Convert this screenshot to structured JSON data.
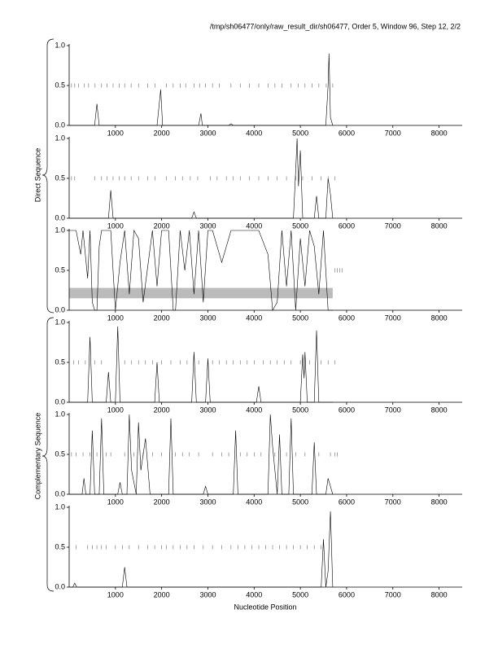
{
  "header": "/tmp/sh06477/only/raw_result_dir/sh06477, Order 5, Window 96, Step 12, 2/2",
  "x_label": "Nucleotide Position",
  "group_labels": [
    "Direct Sequence",
    "Complementary Sequence"
  ],
  "chart_data": [
    {
      "type": "line",
      "color": "#000000",
      "xlim": [
        0,
        8500
      ],
      "ylim": [
        0,
        1
      ],
      "xticks": [
        1000,
        2000,
        3000,
        4000,
        5000,
        6000,
        7000,
        8000
      ],
      "yticks": [
        {
          "value": 0,
          "label": "0.0"
        },
        {
          "value": 0.5,
          "label": "0.5"
        },
        {
          "value": 1,
          "label": "1.0"
        }
      ],
      "x": [
        0,
        550,
        600,
        650,
        1900,
        1980,
        2020,
        2800,
        2850,
        2880,
        3450,
        3500,
        3550,
        5550,
        5600,
        5620,
        5650,
        5700
      ],
      "values": [
        0,
        0,
        0.27,
        0,
        0,
        0.45,
        0,
        0,
        0.15,
        0,
        0,
        0.02,
        0,
        0,
        0.5,
        0.9,
        0.1,
        0
      ],
      "marker_y": 0.5,
      "markers": [
        50,
        120,
        200,
        330,
        420,
        560,
        700,
        820,
        950,
        1080,
        1200,
        1340,
        1500,
        1700,
        1860,
        2100,
        2250,
        2400,
        2520,
        2700,
        2820,
        2950,
        3100,
        3250,
        3500,
        3700,
        3900,
        4100,
        4300,
        4450,
        4600,
        4800,
        4950,
        5100,
        5250,
        5400,
        5560,
        5700
      ]
    },
    {
      "type": "line",
      "color": "#000000",
      "xlim": [
        0,
        8500
      ],
      "ylim": [
        0,
        1
      ],
      "xticks": [
        1000,
        2000,
        3000,
        4000,
        5000,
        6000,
        7000,
        8000
      ],
      "yticks": [
        {
          "value": 0,
          "label": "0.0"
        },
        {
          "value": 0.5,
          "label": "0.5"
        },
        {
          "value": 1,
          "label": "1.0"
        }
      ],
      "x": [
        0,
        850,
        900,
        950,
        2650,
        2700,
        2750,
        4850,
        4900,
        4930,
        4960,
        5000,
        5050,
        5300,
        5350,
        5400,
        5550,
        5600,
        5650,
        5700
      ],
      "values": [
        0,
        0,
        0.35,
        0,
        0,
        0.08,
        0,
        0,
        0.6,
        1,
        0.4,
        0.85,
        0,
        0,
        0.28,
        0,
        0,
        0.5,
        0.3,
        0
      ],
      "marker_y": 0.5,
      "markers": [
        50,
        120,
        550,
        700,
        820,
        950,
        1080,
        1200,
        1340,
        1500,
        1700,
        1860,
        2100,
        2300,
        2450,
        2620,
        2780,
        3050,
        3200,
        3400,
        3550,
        3700,
        3900,
        4100,
        4300,
        4500,
        4700,
        4900,
        5050,
        5250,
        5450,
        5600,
        5750
      ]
    },
    {
      "type": "line",
      "color": "#000000",
      "xlim": [
        0,
        8500
      ],
      "ylim": [
        0,
        1
      ],
      "xticks": [
        1000,
        2000,
        3000,
        4000,
        5000,
        6000,
        7000,
        8000
      ],
      "yticks": [
        {
          "value": 0,
          "label": "0.0"
        },
        {
          "value": 0.5,
          "label": "0.5"
        },
        {
          "value": 1,
          "label": "1.0"
        }
      ],
      "band": [
        0.15,
        0.28
      ],
      "band_x": [
        0,
        5700
      ],
      "x": [
        0,
        150,
        250,
        300,
        400,
        450,
        500,
        550,
        600,
        650,
        700,
        900,
        1000,
        1100,
        1200,
        1300,
        1400,
        1500,
        1600,
        1800,
        1900,
        2000,
        2150,
        2250,
        2300,
        2400,
        2500,
        2600,
        2700,
        2800,
        2900,
        3000,
        3100,
        3300,
        3500,
        3700,
        3900,
        4100,
        4300,
        4400,
        4500,
        4600,
        4700,
        4800,
        4900,
        5000,
        5100,
        5200,
        5300,
        5400,
        5500,
        5600,
        5700
      ],
      "values": [
        1,
        1,
        0.7,
        1,
        0.4,
        1,
        0.1,
        0,
        0,
        0.8,
        1,
        1,
        0,
        0.6,
        1,
        0.2,
        1,
        0.9,
        0.1,
        1,
        0.3,
        1,
        1,
        0,
        0,
        1,
        0.5,
        1,
        0.2,
        1,
        0.1,
        1,
        1,
        0.6,
        1,
        1,
        1,
        1,
        0.7,
        0,
        0.1,
        1,
        0.3,
        1,
        0,
        0.9,
        0.3,
        1,
        0.8,
        0.2,
        1,
        0,
        0
      ],
      "marker_y": 0.5,
      "markers": [
        5750,
        5800,
        5850,
        5900
      ]
    },
    {
      "type": "line",
      "color": "#000000",
      "xlim": [
        0,
        8500
      ],
      "ylim": [
        0,
        1
      ],
      "xticks": [
        1000,
        2000,
        3000,
        4000,
        5000,
        6000,
        7000,
        8000
      ],
      "yticks": [
        {
          "value": 0,
          "label": "0.0"
        },
        {
          "value": 0.5,
          "label": "0.5"
        },
        {
          "value": 1,
          "label": "1.0"
        }
      ],
      "x": [
        0,
        400,
        450,
        500,
        800,
        850,
        900,
        1000,
        1050,
        1100,
        1850,
        1900,
        1950,
        2650,
        2700,
        2750,
        2950,
        3000,
        3050,
        4050,
        4100,
        4150,
        5000,
        5050,
        5080,
        5100,
        5150,
        5300,
        5350,
        5400,
        5700
      ],
      "values": [
        0,
        0,
        0.82,
        0,
        0,
        0.38,
        0,
        0,
        0.95,
        0,
        0,
        0.5,
        0,
        0,
        0.63,
        0,
        0,
        0.55,
        0,
        0,
        0.2,
        0,
        0,
        0.6,
        0.3,
        0.63,
        0,
        0,
        0.9,
        0,
        0
      ],
      "marker_y": 0.5,
      "markers": [
        100,
        200,
        350,
        550,
        700,
        1200,
        1350,
        1500,
        1650,
        1800,
        2000,
        2200,
        2400,
        2550,
        2800,
        3100,
        3250,
        3400,
        3550,
        3700,
        3850,
        4000,
        4200,
        4350,
        4500,
        4650,
        4800,
        5000,
        5200,
        5450,
        5600,
        5750
      ]
    },
    {
      "type": "line",
      "color": "#000000",
      "xlim": [
        0,
        8500
      ],
      "ylim": [
        0,
        1
      ],
      "xticks": [
        1000,
        2000,
        3000,
        4000,
        5000,
        6000,
        7000,
        8000
      ],
      "yticks": [
        {
          "value": 0,
          "label": "0.0"
        },
        {
          "value": 0.5,
          "label": "0.5"
        },
        {
          "value": 1,
          "label": "1.0"
        }
      ],
      "x": [
        0,
        280,
        320,
        360,
        450,
        500,
        550,
        650,
        700,
        750,
        1050,
        1100,
        1150,
        1250,
        1300,
        1350,
        1450,
        1500,
        1550,
        1650,
        1750,
        2150,
        2200,
        2250,
        2900,
        2950,
        3000,
        3550,
        3600,
        3650,
        4300,
        4350,
        4400,
        4500,
        4550,
        4600,
        4750,
        4800,
        4850,
        5250,
        5300,
        5350,
        5550,
        5600,
        5700
      ],
      "values": [
        0,
        0,
        0.2,
        0,
        0,
        0.8,
        0,
        0,
        0.95,
        0,
        0,
        0.15,
        0,
        0,
        1,
        0.3,
        0,
        0.9,
        0.3,
        0.7,
        0,
        0,
        0.95,
        0,
        0,
        0.1,
        0,
        0,
        0.8,
        0,
        0,
        1,
        0.6,
        0,
        0.75,
        0,
        0,
        0.95,
        0,
        0,
        0.65,
        0,
        0,
        0.2,
        0
      ],
      "marker_y": 0.5,
      "markers": [
        50,
        150,
        300,
        450,
        600,
        800,
        900,
        1200,
        1400,
        1600,
        1800,
        2000,
        2300,
        2450,
        2600,
        2800,
        3100,
        3300,
        3450,
        3700,
        3850,
        4000,
        4150,
        4450,
        4700,
        4900,
        5100,
        5400,
        5650,
        5750,
        5800
      ]
    },
    {
      "type": "line",
      "color": "#000000",
      "xlim": [
        0,
        8500
      ],
      "ylim": [
        0,
        1
      ],
      "xticks": [
        1000,
        2000,
        3000,
        4000,
        5000,
        6000,
        7000,
        8000
      ],
      "yticks": [
        {
          "value": 0,
          "label": "0.0"
        },
        {
          "value": 0.5,
          "label": "0.5"
        },
        {
          "value": 1,
          "label": "1.0"
        }
      ],
      "x": [
        0,
        80,
        120,
        160,
        1150,
        1200,
        1250,
        5450,
        5500,
        5550,
        5600,
        5650,
        5700
      ],
      "values": [
        0,
        0,
        0.05,
        0,
        0,
        0.25,
        0,
        0,
        0.6,
        0,
        0.2,
        0.95,
        0
      ],
      "marker_y": 0.5,
      "markers": [
        150,
        400,
        500,
        600,
        700,
        800,
        1000,
        1150,
        1300,
        1500,
        1700,
        1850,
        2000,
        2100,
        2250,
        2400,
        2550,
        2700,
        2900,
        3100,
        3300,
        3500,
        3650,
        3800,
        3950,
        4100,
        4250,
        4400,
        4550,
        4700,
        4850,
        5000,
        5150,
        5300,
        5450
      ]
    }
  ]
}
